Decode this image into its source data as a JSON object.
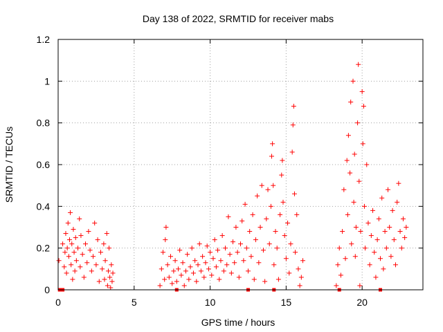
{
  "chart_data": {
    "type": "scatter",
    "title": "Day 138 of 2022, SRMTID for receiver mabs",
    "xlabel": "GPS time / hours",
    "ylabel": "SRMTID / TECUs",
    "xlim": [
      0,
      24
    ],
    "ylim": [
      0,
      1.2
    ],
    "xticks": [
      "0",
      "5",
      "10",
      "15",
      "20"
    ],
    "yticks": [
      "0",
      "0.2",
      "0.4",
      "0.6",
      "0.8",
      "1",
      "1.2"
    ],
    "grid": true,
    "marker": "plus",
    "colors": {
      "series": "#ff0000"
    },
    "series_segments": [
      {
        "x_range": [
          0.0,
          3.6
        ],
        "y_range": [
          0.0,
          0.37
        ]
      },
      {
        "x_range": [
          6.7,
          16.1
        ],
        "y_range": [
          0.0,
          0.88
        ]
      },
      {
        "x_range": [
          18.3,
          22.9
        ],
        "y_range": [
          0.0,
          1.08
        ]
      }
    ],
    "points": [
      [
        0.05,
        0.14
      ],
      [
        0.3,
        0.22
      ],
      [
        0.4,
        0.11
      ],
      [
        0.45,
        0.18
      ],
      [
        0.5,
        0.27
      ],
      [
        0.55,
        0.08
      ],
      [
        0.6,
        0.2
      ],
      [
        0.65,
        0.32
      ],
      [
        0.7,
        0.16
      ],
      [
        0.75,
        0.24
      ],
      [
        0.8,
        0.37
      ],
      [
        0.85,
        0.12
      ],
      [
        0.9,
        0.22
      ],
      [
        0.95,
        0.05
      ],
      [
        1.0,
        0.29
      ],
      [
        1.05,
        0.18
      ],
      [
        1.1,
        0.09
      ],
      [
        1.15,
        0.25
      ],
      [
        1.2,
        0.14
      ],
      [
        1.3,
        0.2
      ],
      [
        1.4,
        0.34
      ],
      [
        1.45,
        0.11
      ],
      [
        1.5,
        0.26
      ],
      [
        1.6,
        0.17
      ],
      [
        1.7,
        0.06
      ],
      [
        1.8,
        0.22
      ],
      [
        1.9,
        0.13
      ],
      [
        2.0,
        0.28
      ],
      [
        2.1,
        0.19
      ],
      [
        2.2,
        0.09
      ],
      [
        2.3,
        0.16
      ],
      [
        2.4,
        0.32
      ],
      [
        2.5,
        0.12
      ],
      [
        2.6,
        0.24
      ],
      [
        2.7,
        0.04
      ],
      [
        2.8,
        0.18
      ],
      [
        2.9,
        0.1
      ],
      [
        3.0,
        0.22
      ],
      [
        3.05,
        0.05
      ],
      [
        3.1,
        0.14
      ],
      [
        3.2,
        0.27
      ],
      [
        3.25,
        0.02
      ],
      [
        3.3,
        0.09
      ],
      [
        3.35,
        0.2
      ],
      [
        3.4,
        0.06
      ],
      [
        3.45,
        0.01
      ],
      [
        3.5,
        0.12
      ],
      [
        3.55,
        0.04
      ],
      [
        3.6,
        0.08
      ],
      [
        6.7,
        0.02
      ],
      [
        6.8,
        0.1
      ],
      [
        6.9,
        0.18
      ],
      [
        7.0,
        0.05
      ],
      [
        7.05,
        0.24
      ],
      [
        7.1,
        0.3
      ],
      [
        7.2,
        0.12
      ],
      [
        7.3,
        0.06
      ],
      [
        7.4,
        0.16
      ],
      [
        7.5,
        0.03
      ],
      [
        7.6,
        0.09
      ],
      [
        7.7,
        0.14
      ],
      [
        7.8,
        0.04
      ],
      [
        7.9,
        0.1
      ],
      [
        8.0,
        0.19
      ],
      [
        8.1,
        0.07
      ],
      [
        8.2,
        0.13
      ],
      [
        8.3,
        0.02
      ],
      [
        8.4,
        0.09
      ],
      [
        8.5,
        0.17
      ],
      [
        8.6,
        0.05
      ],
      [
        8.7,
        0.11
      ],
      [
        8.8,
        0.2
      ],
      [
        8.9,
        0.08
      ],
      [
        9.0,
        0.14
      ],
      [
        9.1,
        0.04
      ],
      [
        9.2,
        0.12
      ],
      [
        9.3,
        0.22
      ],
      [
        9.4,
        0.09
      ],
      [
        9.5,
        0.16
      ],
      [
        9.6,
        0.06
      ],
      [
        9.7,
        0.13
      ],
      [
        9.8,
        0.21
      ],
      [
        9.9,
        0.1
      ],
      [
        10.0,
        0.18
      ],
      [
        10.1,
        0.07
      ],
      [
        10.2,
        0.15
      ],
      [
        10.3,
        0.24
      ],
      [
        10.4,
        0.11
      ],
      [
        10.5,
        0.19
      ],
      [
        10.6,
        0.05
      ],
      [
        10.7,
        0.14
      ],
      [
        10.8,
        0.26
      ],
      [
        10.9,
        0.09
      ],
      [
        11.0,
        0.2
      ],
      [
        11.1,
        0.12
      ],
      [
        11.2,
        0.35
      ],
      [
        11.3,
        0.17
      ],
      [
        11.4,
        0.08
      ],
      [
        11.5,
        0.23
      ],
      [
        11.6,
        0.13
      ],
      [
        11.7,
        0.3
      ],
      [
        11.8,
        0.18
      ],
      [
        11.9,
        0.06
      ],
      [
        12.0,
        0.22
      ],
      [
        12.1,
        0.33
      ],
      [
        12.2,
        0.14
      ],
      [
        12.3,
        0.41
      ],
      [
        12.4,
        0.2
      ],
      [
        12.5,
        0.09
      ],
      [
        12.6,
        0.28
      ],
      [
        12.7,
        0.16
      ],
      [
        12.8,
        0.36
      ],
      [
        12.9,
        0.05
      ],
      [
        13.0,
        0.24
      ],
      [
        13.1,
        0.45
      ],
      [
        13.2,
        0.13
      ],
      [
        13.3,
        0.3
      ],
      [
        13.4,
        0.5
      ],
      [
        13.5,
        0.19
      ],
      [
        13.6,
        0.04
      ],
      [
        13.7,
        0.34
      ],
      [
        13.8,
        0.48
      ],
      [
        13.9,
        0.22
      ],
      [
        14.0,
        0.4
      ],
      [
        14.05,
        0.64
      ],
      [
        14.1,
        0.7
      ],
      [
        14.15,
        0.5
      ],
      [
        14.2,
        0.12
      ],
      [
        14.3,
        0.28
      ],
      [
        14.4,
        0.2
      ],
      [
        14.5,
        0.05
      ],
      [
        14.6,
        0.36
      ],
      [
        14.7,
        0.55
      ],
      [
        14.75,
        0.62
      ],
      [
        14.8,
        0.42
      ],
      [
        14.9,
        0.26
      ],
      [
        15.0,
        0.15
      ],
      [
        15.1,
        0.32
      ],
      [
        15.2,
        0.08
      ],
      [
        15.3,
        0.22
      ],
      [
        15.4,
        0.66
      ],
      [
        15.45,
        0.79
      ],
      [
        15.5,
        0.88
      ],
      [
        15.55,
        0.46
      ],
      [
        15.6,
        0.18
      ],
      [
        15.7,
        0.36
      ],
      [
        15.8,
        0.1
      ],
      [
        15.9,
        0.02
      ],
      [
        16.0,
        0.06
      ],
      [
        16.1,
        0.14
      ],
      [
        18.3,
        0.02
      ],
      [
        18.4,
        0.12
      ],
      [
        18.5,
        0.2
      ],
      [
        18.6,
        0.07
      ],
      [
        18.7,
        0.28
      ],
      [
        18.8,
        0.48
      ],
      [
        18.9,
        0.15
      ],
      [
        19.0,
        0.62
      ],
      [
        19.05,
        0.36
      ],
      [
        19.1,
        0.74
      ],
      [
        19.2,
        0.56
      ],
      [
        19.25,
        0.9
      ],
      [
        19.3,
        0.22
      ],
      [
        19.4,
        1.0
      ],
      [
        19.45,
        0.42
      ],
      [
        19.5,
        0.65
      ],
      [
        19.55,
        0.16
      ],
      [
        19.6,
        0.3
      ],
      [
        19.7,
        0.8
      ],
      [
        19.75,
        1.08
      ],
      [
        19.8,
        0.52
      ],
      [
        19.85,
        0.02
      ],
      [
        19.9,
        0.28
      ],
      [
        20.0,
        0.95
      ],
      [
        20.05,
        0.7
      ],
      [
        20.1,
        0.88
      ],
      [
        20.15,
        0.4
      ],
      [
        20.2,
        0.2
      ],
      [
        20.3,
        0.6
      ],
      [
        20.4,
        0.32
      ],
      [
        20.5,
        0.12
      ],
      [
        20.6,
        0.26
      ],
      [
        20.7,
        0.38
      ],
      [
        20.8,
        0.18
      ],
      [
        20.9,
        0.06
      ],
      [
        21.0,
        0.24
      ],
      [
        21.1,
        0.34
      ],
      [
        21.2,
        0.15
      ],
      [
        21.3,
        0.44
      ],
      [
        21.4,
        0.1
      ],
      [
        21.5,
        0.28
      ],
      [
        21.6,
        0.2
      ],
      [
        21.7,
        0.48
      ],
      [
        21.8,
        0.3
      ],
      [
        21.9,
        0.16
      ],
      [
        22.0,
        0.38
      ],
      [
        22.1,
        0.24
      ],
      [
        22.2,
        0.12
      ],
      [
        22.3,
        0.42
      ],
      [
        22.4,
        0.51
      ],
      [
        22.5,
        0.28
      ],
      [
        22.6,
        0.2
      ],
      [
        22.7,
        0.34
      ],
      [
        22.8,
        0.25
      ],
      [
        22.9,
        0.3
      ]
    ],
    "baseline_markers": [
      0.1,
      0.2,
      0.3,
      7.8,
      12.5,
      14.2,
      18.5,
      21.2
    ]
  }
}
